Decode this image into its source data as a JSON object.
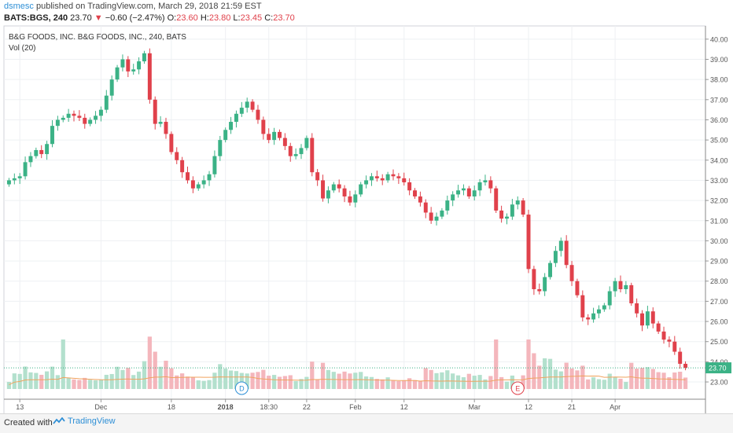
{
  "header": {
    "user": "dsmesc",
    "published_text": "published on TradingView.com, March 29, 2018 21:59 EST",
    "symbol": "BATS:BGS, 240",
    "last": "23.70",
    "change": "−0.60 (−2.47%)",
    "o_label": "O:",
    "open": "23.60",
    "h_label": "H:",
    "high": "23.80",
    "l_label": "L:",
    "low": "23.45",
    "c_label": "C:",
    "close": "23.70"
  },
  "footer": {
    "created": "Created with",
    "brand": "TradingView"
  },
  "colors": {
    "up": "#3bb286",
    "down": "#e0414b",
    "vol_up": "#b3e0cd",
    "vol_down": "#f4b6bc",
    "vol_ma": "#f0a35e",
    "grid": "#eef0f3",
    "price_line": "#3bb286",
    "accent": "#2e8fd6"
  },
  "chart_data": {
    "type": "candlestick",
    "title": "B&G FOODS, INC. B&G FOODS, INC., 240, BATS",
    "indicator_label": "Vol (20)",
    "ylim": [
      22.3,
      40.5
    ],
    "y_ticks": [
      "23.00",
      "24.00",
      "25.00",
      "26.00",
      "27.00",
      "28.00",
      "29.00",
      "30.00",
      "31.00",
      "32.00",
      "33.00",
      "34.00",
      "35.00",
      "36.00",
      "37.00",
      "38.00",
      "39.00",
      "40.00"
    ],
    "x_ticks": [
      {
        "label": "13",
        "bar": 2,
        "bold": false
      },
      {
        "label": "Dec",
        "bar": 17,
        "bold": false
      },
      {
        "label": "18",
        "bar": 30,
        "bold": false
      },
      {
        "label": "2018",
        "bar": 40,
        "bold": true
      },
      {
        "label": "18:30",
        "bar": 48,
        "bold": false
      },
      {
        "label": "22",
        "bar": 55,
        "bold": false
      },
      {
        "label": "Feb",
        "bar": 64,
        "bold": false
      },
      {
        "label": "12",
        "bar": 73,
        "bold": false
      },
      {
        "label": "Mar",
        "bar": 86,
        "bold": false
      },
      {
        "label": "12",
        "bar": 96,
        "bold": false
      },
      {
        "label": "21",
        "bar": 104,
        "bold": false
      },
      {
        "label": "Apr",
        "bar": 112,
        "bold": false
      }
    ],
    "closes": [
      33.0,
      33.1,
      33.2,
      33.9,
      34.2,
      34.5,
      34.3,
      34.8,
      35.7,
      36.0,
      36.1,
      36.3,
      36.2,
      36.1,
      35.8,
      36.0,
      36.2,
      36.5,
      37.2,
      38.0,
      38.6,
      39.0,
      38.4,
      38.5,
      38.9,
      39.3,
      37.0,
      35.8,
      35.9,
      35.3,
      34.4,
      34.0,
      33.4,
      33.0,
      32.6,
      32.8,
      33.0,
      33.3,
      34.2,
      35.0,
      35.5,
      35.9,
      36.3,
      36.6,
      36.9,
      36.5,
      36.0,
      35.3,
      35.0,
      35.4,
      35.1,
      34.7,
      34.2,
      34.3,
      34.6,
      35.1,
      33.4,
      33.0,
      32.1,
      32.5,
      32.8,
      32.6,
      32.2,
      31.9,
      32.3,
      32.8,
      33.0,
      33.2,
      33.1,
      33.0,
      33.3,
      33.2,
      33.1,
      32.9,
      32.5,
      32.2,
      31.9,
      31.4,
      31.0,
      31.2,
      31.5,
      32.0,
      32.3,
      32.5,
      32.6,
      32.2,
      32.5,
      32.9,
      33.0,
      32.6,
      31.5,
      31.1,
      31.2,
      31.8,
      32.0,
      31.3,
      28.6,
      27.6,
      27.5,
      28.2,
      28.9,
      29.5,
      30.0,
      28.8,
      28.0,
      27.3,
      26.2,
      26.1,
      26.4,
      26.6,
      26.8,
      27.5,
      28.0,
      27.6,
      27.8,
      26.9,
      26.4,
      25.8,
      26.5,
      25.9,
      25.5,
      25.1,
      25.0,
      24.5,
      23.9,
      23.7
    ]
  }
}
